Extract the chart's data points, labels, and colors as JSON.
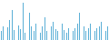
{
  "values": [
    0.35,
    0.55,
    0.25,
    0.5,
    0.8,
    1.2,
    0.4,
    0.25,
    0.6,
    0.45,
    1.5,
    0.3,
    0.85,
    1.1,
    0.55,
    0.35,
    0.65,
    0.45,
    0.28,
    0.55,
    0.9,
    0.35,
    0.45,
    0.55,
    0.75,
    0.45,
    0.35,
    0.55,
    0.65,
    0.42,
    0.28,
    0.48,
    0.55,
    0.38,
    0.48,
    0.65,
    1.1,
    1.4,
    0.55,
    0.38,
    0.48,
    0.65,
    0.55,
    0.38,
    0.48,
    0.55,
    0.72,
    0.45,
    0.35,
    0.55
  ],
  "bar_color": "#5bafd6",
  "background_color": "#ffffff",
  "ylim": [
    0,
    1.65
  ],
  "bar_width": 0.35
}
